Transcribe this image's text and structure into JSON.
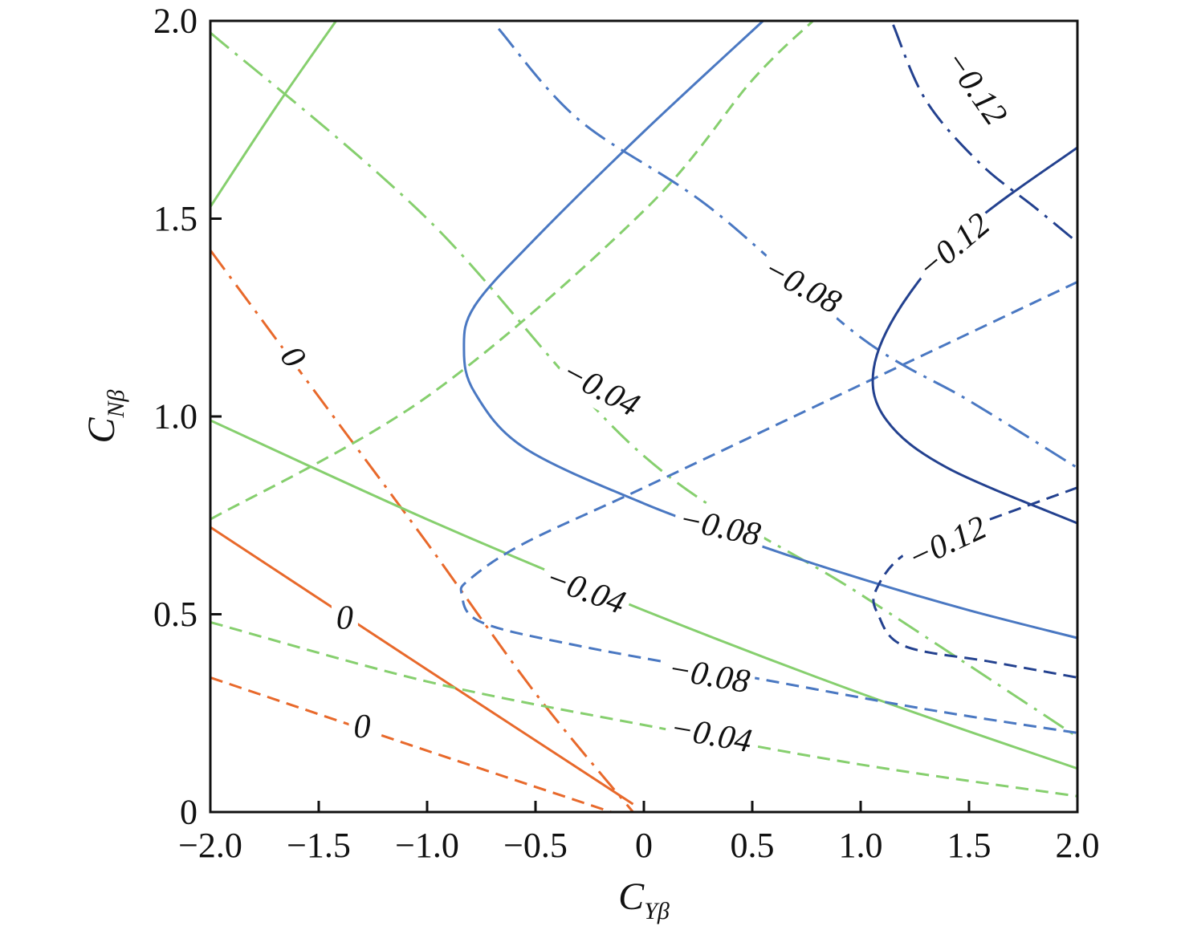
{
  "chart_data": {
    "type": "contour",
    "xlabel": "C",
    "xlabel_sub": "Yβ",
    "ylabel": "C",
    "ylabel_sub": "Nβ",
    "xlim": [
      -2.0,
      2.0
    ],
    "ylim": [
      0,
      2.0
    ],
    "x_ticks": [
      "−2.0",
      "−1.5",
      "−1.0",
      "−0.5",
      "0",
      "0.5",
      "1.0",
      "1.5",
      "2.0"
    ],
    "x_tick_values": [
      -2.0,
      -1.5,
      -1.0,
      -0.5,
      0,
      0.5,
      1.0,
      1.5,
      2.0
    ],
    "y_ticks": [
      "0",
      "0.5",
      "1.0",
      "1.5",
      "2.0"
    ],
    "y_tick_values": [
      0,
      0.5,
      1.0,
      1.5,
      2.0
    ],
    "grid": false,
    "colors": {
      "orange": "#e8692b",
      "green": "#86cf6e",
      "blue": "#4a78c2",
      "navy": "#23418f"
    },
    "series": [
      {
        "id": "orange-solid",
        "color": "orange",
        "style": "solid",
        "points": [
          [
            -2.0,
            0.72
          ],
          [
            -1.0,
            0.36
          ],
          [
            -0.05,
            0.02
          ]
        ]
      },
      {
        "id": "orange-dashed",
        "color": "orange",
        "style": "dashed",
        "points": [
          [
            -2.0,
            0.34
          ],
          [
            -1.0,
            0.155
          ],
          [
            -0.15,
            0.0
          ]
        ]
      },
      {
        "id": "orange-dashdot",
        "color": "orange",
        "style": "dashdot",
        "points": [
          [
            -2.0,
            1.42
          ],
          [
            -1.5,
            1.05
          ],
          [
            -1.0,
            0.68
          ],
          [
            -0.5,
            0.3
          ],
          [
            -0.05,
            0.0
          ]
        ]
      },
      {
        "id": "green-solid-upper",
        "color": "green",
        "style": "solid",
        "points": [
          [
            -2.0,
            1.53
          ],
          [
            -1.7,
            1.78
          ],
          [
            -1.42,
            2.0
          ]
        ]
      },
      {
        "id": "green-solid-lower",
        "color": "green",
        "style": "solid",
        "points": [
          [
            -2.0,
            0.99
          ],
          [
            -1.0,
            0.74
          ],
          [
            0.0,
            0.51
          ],
          [
            1.0,
            0.3
          ],
          [
            2.0,
            0.11
          ]
        ]
      },
      {
        "id": "green-dashed-rising",
        "color": "green",
        "style": "dashed",
        "points": [
          [
            -2.0,
            0.74
          ],
          [
            -1.0,
            1.05
          ],
          [
            0.0,
            1.52
          ],
          [
            0.5,
            1.85
          ],
          [
            0.78,
            2.0
          ]
        ]
      },
      {
        "id": "green-dashed-lower",
        "color": "green",
        "style": "dashed",
        "points": [
          [
            -2.0,
            0.48
          ],
          [
            -1.0,
            0.33
          ],
          [
            0.0,
            0.22
          ],
          [
            1.0,
            0.12
          ],
          [
            2.0,
            0.04
          ]
        ]
      },
      {
        "id": "green-dashdot",
        "color": "green",
        "style": "dashdot",
        "points": [
          [
            -2.0,
            1.97
          ],
          [
            -1.0,
            1.5
          ],
          [
            0.0,
            0.9
          ],
          [
            1.0,
            0.55
          ],
          [
            2.0,
            0.19
          ]
        ]
      },
      {
        "id": "blue-solid",
        "color": "blue",
        "style": "solid",
        "points": [
          [
            0.55,
            2.0
          ],
          [
            0.0,
            1.72
          ],
          [
            -0.5,
            1.45
          ],
          [
            -0.78,
            1.28
          ],
          [
            -0.83,
            1.17
          ],
          [
            -0.78,
            1.06
          ],
          [
            -0.55,
            0.92
          ],
          [
            0.0,
            0.78
          ],
          [
            0.5,
            0.68
          ],
          [
            1.0,
            0.59
          ],
          [
            1.5,
            0.51
          ],
          [
            2.0,
            0.44
          ]
        ]
      },
      {
        "id": "blue-dashed",
        "color": "blue",
        "style": "dashed",
        "points": [
          [
            2.0,
            1.34
          ],
          [
            1.0,
            1.08
          ],
          [
            0.0,
            0.82
          ],
          [
            -0.55,
            0.68
          ],
          [
            -0.8,
            0.59
          ],
          [
            -0.84,
            0.55
          ],
          [
            -0.75,
            0.48
          ],
          [
            -0.3,
            0.42
          ],
          [
            0.5,
            0.34
          ],
          [
            1.3,
            0.26
          ],
          [
            2.0,
            0.2
          ]
        ]
      },
      {
        "id": "blue-dashdot",
        "color": "blue",
        "style": "dashdot",
        "points": [
          [
            -0.67,
            1.98
          ],
          [
            -0.3,
            1.75
          ],
          [
            0.3,
            1.53
          ],
          [
            1.0,
            1.2
          ],
          [
            1.5,
            1.04
          ],
          [
            2.0,
            0.87
          ]
        ]
      },
      {
        "id": "navy-solid",
        "color": "navy",
        "style": "solid",
        "points": [
          [
            2.0,
            1.68
          ],
          [
            1.5,
            1.48
          ],
          [
            1.2,
            1.29
          ],
          [
            1.06,
            1.12
          ],
          [
            1.12,
            0.99
          ],
          [
            1.4,
            0.87
          ],
          [
            2.0,
            0.73
          ]
        ]
      },
      {
        "id": "navy-dashed",
        "color": "navy",
        "style": "dashed",
        "points": [
          [
            2.0,
            0.82
          ],
          [
            1.5,
            0.72
          ],
          [
            1.2,
            0.65
          ],
          [
            1.07,
            0.56
          ],
          [
            1.08,
            0.5
          ],
          [
            1.2,
            0.42
          ],
          [
            1.6,
            0.38
          ],
          [
            2.0,
            0.34
          ]
        ]
      },
      {
        "id": "navy-dashdot",
        "color": "navy",
        "style": "dashdot",
        "points": [
          [
            1.15,
            1.99
          ],
          [
            1.3,
            1.8
          ],
          [
            1.55,
            1.64
          ],
          [
            1.8,
            1.53
          ],
          [
            2.0,
            1.44
          ]
        ]
      }
    ],
    "annotations": [
      {
        "text": "0",
        "x": -1.62,
        "y": 1.15,
        "rotate": 55
      },
      {
        "text": "0",
        "x": -1.38,
        "y": 0.49,
        "rotate": 0
      },
      {
        "text": "0",
        "x": -1.3,
        "y": 0.215,
        "rotate": 0
      },
      {
        "text": "−0.04",
        "x": -0.2,
        "y": 1.07,
        "rotate": 28
      },
      {
        "text": "−0.04",
        "x": -0.27,
        "y": 0.56,
        "rotate": 20
      },
      {
        "text": "−0.04",
        "x": 0.31,
        "y": 0.195,
        "rotate": 10
      },
      {
        "text": "−0.08",
        "x": 0.73,
        "y": 1.33,
        "rotate": 28
      },
      {
        "text": "−0.08",
        "x": 0.35,
        "y": 0.72,
        "rotate": 12
      },
      {
        "text": "−0.08",
        "x": 0.3,
        "y": 0.345,
        "rotate": 10
      },
      {
        "text": "−0.12",
        "x": 1.53,
        "y": 1.83,
        "rotate": 55
      },
      {
        "text": "−0.12",
        "x": 1.43,
        "y": 1.43,
        "rotate": -40
      },
      {
        "text": "−0.12",
        "x": 1.4,
        "y": 0.68,
        "rotate": -25
      }
    ]
  }
}
